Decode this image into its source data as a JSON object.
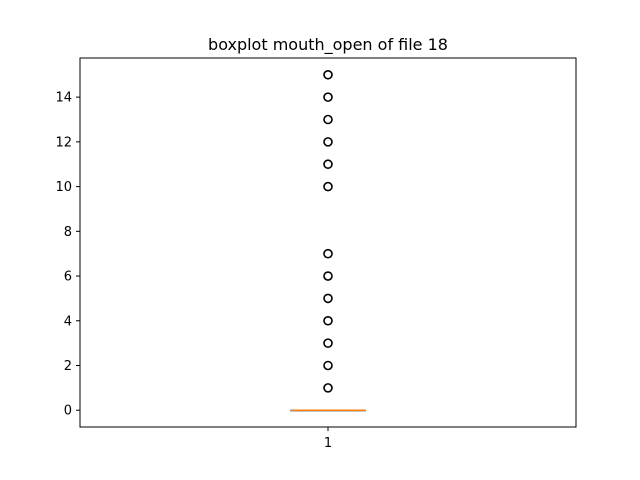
{
  "chart_data": {
    "type": "boxplot",
    "title": "boxplot mouth_open of file 18",
    "xlabel": "",
    "ylabel": "",
    "categories": [
      "1"
    ],
    "ylim": [
      -0.75,
      15.75
    ],
    "yticks": [
      0,
      2,
      4,
      6,
      8,
      10,
      12,
      14
    ],
    "grid": false,
    "box": {
      "q1": 0,
      "median": 0,
      "q3": 0,
      "whisker_low": 0,
      "whisker_high": 0
    },
    "fliers": [
      1,
      2,
      3,
      4,
      5,
      6,
      7,
      10,
      11,
      12,
      13,
      14,
      15
    ],
    "colors": {
      "median": "#ff7f0e",
      "box": "#000000",
      "flier": "#000000"
    }
  }
}
